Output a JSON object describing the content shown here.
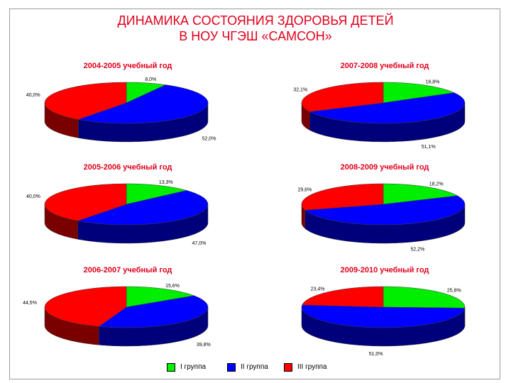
{
  "title": {
    "line1": "ДИНАМИКА СОСТОЯНИЯ ЗДОРОВЬЯ ДЕТЕЙ",
    "line2": "В НОУ ЧГЭШ «САМСОН»"
  },
  "colors": {
    "title": "#e0001b",
    "slices": [
      "#00ee00",
      "#0000ff",
      "#ff0000"
    ],
    "sides": [
      "#007a00",
      "#00007a",
      "#7a0000"
    ]
  },
  "legend": {
    "items": [
      {
        "label": "I группа",
        "color": "#00ee00"
      },
      {
        "label": "II группа",
        "color": "#0000ff"
      },
      {
        "label": "III группа",
        "color": "#ff0000"
      }
    ]
  },
  "chart_data": [
    {
      "type": "pie",
      "title": "2004-2005 учебный год",
      "categories": [
        "I группа",
        "II группа",
        "III группа"
      ],
      "values": [
        8.0,
        52.0,
        40.0
      ],
      "labels": [
        "8,0%",
        "52,0%",
        "40,0%"
      ]
    },
    {
      "type": "pie",
      "title": "2005-2006 учебный год",
      "categories": [
        "I группа",
        "II группа",
        "III группа"
      ],
      "values": [
        13.3,
        47.0,
        40.0
      ],
      "labels": [
        "13,3%",
        "47,0%",
        "40,0%"
      ]
    },
    {
      "type": "pie",
      "title": "2006-2007 учебный год",
      "categories": [
        "I группа",
        "II группа",
        "III группа"
      ],
      "values": [
        15.6,
        39.8,
        44.5
      ],
      "labels": [
        "15,6%",
        "39,8%",
        "44,5%"
      ]
    },
    {
      "type": "pie",
      "title": "2007-2008 учебный год",
      "categories": [
        "I группа",
        "II группа",
        "III группа"
      ],
      "values": [
        16.8,
        51.1,
        32.1
      ],
      "labels": [
        "16,8%",
        "51,1%",
        "32,1%"
      ]
    },
    {
      "type": "pie",
      "title": "2008-2009 учебный год",
      "categories": [
        "I группа",
        "II группа",
        "III группа"
      ],
      "values": [
        18.2,
        52.2,
        29.6
      ],
      "labels": [
        "18,2%",
        "52,2%",
        "29,6%"
      ]
    },
    {
      "type": "pie",
      "title": "2009-2010 учебный год",
      "categories": [
        "I группа",
        "II группа",
        "III группа"
      ],
      "values": [
        25.8,
        51.0,
        23.4
      ],
      "labels": [
        "25,8%",
        "51,0%",
        "23,4%"
      ]
    }
  ]
}
